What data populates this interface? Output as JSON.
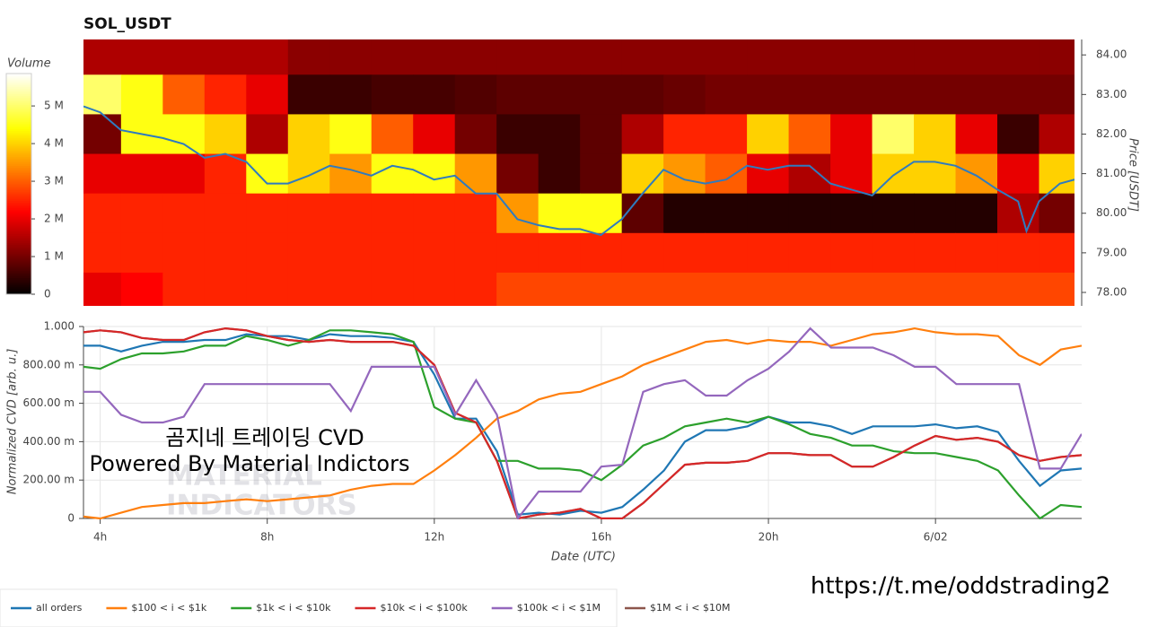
{
  "chart_data": [
    {
      "type": "heatmap",
      "title": "SOL_USDT",
      "ylabel": "Price [USDT]",
      "xlim": [
        3.6,
        27.35
      ],
      "ylim": [
        77.66,
        84.39
      ],
      "yticks": [
        {
          "value": 78,
          "label": "78.00"
        },
        {
          "value": 79,
          "label": "79.00"
        },
        {
          "value": 80,
          "label": "80.00"
        },
        {
          "value": 81,
          "label": "81.00"
        },
        {
          "value": 82,
          "label": "82.00"
        },
        {
          "value": 83,
          "label": "83.00"
        },
        {
          "value": 84,
          "label": "84.00"
        }
      ],
      "colormap": "hot",
      "colorbar": {
        "label": "Volume",
        "lim": [
          0,
          5.86
        ],
        "ticks": [
          0,
          {
            "value": 1,
            "label": "1 M"
          },
          {
            "value": 2,
            "label": "2 M"
          },
          {
            "value": 3,
            "label": "3 M"
          },
          {
            "value": 4,
            "label": "4 M"
          },
          {
            "value": 5,
            "label": "5 M"
          }
        ]
      },
      "x_edges": [
        3.5,
        4.5,
        5.5,
        6.5,
        7.5,
        8.5,
        9.5,
        10.5,
        11.5,
        12.5,
        13.5,
        14.5,
        15.5,
        16.5,
        17.5,
        18.5,
        19.5,
        20.5,
        21.5,
        22.5,
        23.5,
        24.5,
        25.5,
        26.5,
        27.5
      ],
      "y_edges": [
        84.5,
        83.5,
        82.5,
        81.5,
        80.5,
        79.5,
        78.5,
        77.5
      ],
      "z": [
        [
          1.5,
          1.5,
          1.5,
          1.5,
          1.5,
          1.2,
          1.2,
          1.2,
          1.2,
          1.2,
          1.2,
          1.2,
          1.2,
          1.2,
          1.2,
          1.2,
          1.2,
          1.2,
          1.2,
          1.2,
          1.2,
          1.2,
          1.2,
          1.2
        ],
        [
          5,
          4.5,
          3,
          2.5,
          2,
          0.5,
          0.5,
          0.6,
          0.6,
          0.7,
          0.8,
          0.8,
          0.8,
          0.8,
          0.9,
          1,
          1,
          1,
          1,
          1,
          1,
          1,
          1,
          1
        ],
        [
          1,
          4.5,
          4.5,
          4,
          1.5,
          4,
          4.5,
          3,
          2,
          1,
          0.5,
          0.5,
          0.8,
          1.5,
          2.5,
          2.5,
          4,
          3,
          2,
          5,
          4,
          2,
          0.5,
          1.5
        ],
        [
          2,
          2,
          2,
          2.5,
          4.5,
          4,
          3.5,
          4.5,
          4.5,
          3.5,
          1,
          0.5,
          0.8,
          4,
          3.5,
          3,
          2,
          1.5,
          2,
          4,
          4,
          3.5,
          2,
          4
        ],
        [
          2.5,
          2.5,
          2.5,
          2.5,
          2.5,
          2.5,
          2.5,
          2.5,
          2.5,
          2.5,
          3.5,
          4.5,
          4.5,
          0.8,
          0.3,
          0.3,
          0.3,
          0.3,
          0.3,
          0.3,
          0.3,
          0.3,
          1.5,
          1
        ],
        [
          2.5,
          2.5,
          2.5,
          2.5,
          2.5,
          2.5,
          2.5,
          2.5,
          2.5,
          2.5,
          2.5,
          2.5,
          2.5,
          2.5,
          2.5,
          2.5,
          2.5,
          2.5,
          2.5,
          2.5,
          2.5,
          2.5,
          2.5,
          2.5
        ],
        [
          2,
          2.2,
          2.5,
          2.5,
          2.5,
          2.5,
          2.5,
          2.5,
          2.5,
          2.5,
          2.8,
          2.8,
          2.8,
          2.8,
          2.8,
          2.8,
          2.8,
          2.8,
          2.8,
          2.8,
          2.8,
          2.8,
          2.8,
          2.8
        ]
      ],
      "line": {
        "color": "#2f7bbf",
        "x": [
          3.6,
          4,
          4.5,
          5,
          5.5,
          6,
          6.5,
          7,
          7.5,
          8,
          8.5,
          9,
          9.5,
          10,
          10.5,
          11,
          11.5,
          12,
          12.5,
          13,
          13.5,
          14,
          14.5,
          15,
          15.5,
          16,
          16.5,
          17,
          17.5,
          18,
          18.5,
          19,
          19.5,
          20,
          20.5,
          21,
          21.5,
          22,
          22.5,
          23,
          23.5,
          24,
          24.5,
          25,
          25.5,
          26,
          26.2,
          26.5,
          27,
          27.35
        ],
        "values": [
          82.7,
          82.55,
          82.1,
          82.0,
          81.9,
          81.75,
          81.4,
          81.5,
          81.3,
          80.75,
          80.75,
          80.95,
          81.2,
          81.1,
          80.95,
          81.2,
          81.1,
          80.85,
          80.95,
          80.5,
          80.5,
          79.85,
          79.7,
          79.6,
          79.6,
          79.45,
          79.85,
          80.5,
          81.1,
          80.85,
          80.75,
          80.85,
          81.2,
          81.1,
          81.2,
          81.2,
          80.75,
          80.6,
          80.45,
          80.95,
          81.3,
          81.3,
          81.2,
          80.95,
          80.6,
          80.3,
          79.55,
          80.3,
          80.75,
          80.85
        ]
      }
    },
    {
      "type": "line",
      "xlabel": "Date (UTC)",
      "ylabel": "Normalized CVD [arb. u.]",
      "xlim": [
        3.6,
        27.5
      ],
      "ylim": [
        0,
        1
      ],
      "xticks": [
        {
          "value": 4,
          "label": "4h"
        },
        {
          "value": 8,
          "label": "8h"
        },
        {
          "value": 12,
          "label": "12h"
        },
        {
          "value": 16,
          "label": "16h"
        },
        {
          "value": 20,
          "label": "20h"
        },
        {
          "value": 24,
          "label": "6/02"
        }
      ],
      "yticks": [
        0,
        {
          "value": 0.2,
          "label": "200.00 m"
        },
        {
          "value": 0.4,
          "label": "400.00 m"
        },
        {
          "value": 0.6,
          "label": "600.00 m"
        },
        {
          "value": 0.8,
          "label": "800.00 m"
        },
        {
          "value": 1,
          "label": "1.000"
        }
      ],
      "grid": true,
      "x": [
        3.6,
        4,
        4.5,
        5,
        5.5,
        6,
        6.5,
        7,
        7.5,
        8,
        8.5,
        9,
        9.5,
        10,
        10.5,
        11,
        11.5,
        12,
        12.5,
        13,
        13.5,
        14,
        14.5,
        15,
        15.5,
        16,
        16.5,
        17,
        17.5,
        18,
        18.5,
        19,
        19.5,
        20,
        20.5,
        21,
        21.5,
        22,
        22.5,
        23,
        23.5,
        24,
        24.5,
        25,
        25.5,
        26,
        26.5,
        27,
        27.5
      ],
      "series": [
        {
          "name": "all orders",
          "color": "#1f77b4",
          "values": [
            0.9,
            0.9,
            0.87,
            0.9,
            0.92,
            0.92,
            0.93,
            0.93,
            0.96,
            0.95,
            0.95,
            0.93,
            0.96,
            0.95,
            0.95,
            0.94,
            0.92,
            0.75,
            0.52,
            0.52,
            0.35,
            0.02,
            0.03,
            0.02,
            0.04,
            0.03,
            0.06,
            0.15,
            0.25,
            0.4,
            0.46,
            0.46,
            0.48,
            0.53,
            0.5,
            0.5,
            0.48,
            0.44,
            0.48,
            0.48,
            0.48,
            0.49,
            0.47,
            0.48,
            0.45,
            0.3,
            0.17,
            0.25,
            0.26
          ]
        },
        {
          "name": "$100 < i < $1k",
          "color": "#ff7f0e",
          "values": [
            0.01,
            0.0,
            0.03,
            0.06,
            0.07,
            0.08,
            0.08,
            0.09,
            0.1,
            0.09,
            0.1,
            0.11,
            0.12,
            0.15,
            0.17,
            0.18,
            0.18,
            0.25,
            0.33,
            0.42,
            0.52,
            0.56,
            0.62,
            0.65,
            0.66,
            0.7,
            0.74,
            0.8,
            0.84,
            0.88,
            0.92,
            0.93,
            0.91,
            0.93,
            0.92,
            0.92,
            0.9,
            0.93,
            0.96,
            0.97,
            0.99,
            0.97,
            0.96,
            0.96,
            0.95,
            0.85,
            0.8,
            0.88,
            0.9
          ]
        },
        {
          "name": "$1k < i < $10k",
          "color": "#2ca02c",
          "values": [
            0.79,
            0.78,
            0.83,
            0.86,
            0.86,
            0.87,
            0.9,
            0.9,
            0.95,
            0.93,
            0.9,
            0.93,
            0.98,
            0.98,
            0.97,
            0.96,
            0.92,
            0.58,
            0.52,
            0.5,
            0.3,
            0.3,
            0.26,
            0.26,
            0.25,
            0.2,
            0.28,
            0.38,
            0.42,
            0.48,
            0.5,
            0.52,
            0.5,
            0.53,
            0.49,
            0.44,
            0.42,
            0.38,
            0.38,
            0.35,
            0.34,
            0.34,
            0.32,
            0.3,
            0.25,
            0.12,
            0.0,
            0.07,
            0.06
          ]
        },
        {
          "name": "$10k < i < $100k",
          "color": "#d62728",
          "values": [
            0.97,
            0.98,
            0.97,
            0.94,
            0.93,
            0.93,
            0.97,
            0.99,
            0.98,
            0.95,
            0.93,
            0.92,
            0.93,
            0.92,
            0.92,
            0.92,
            0.9,
            0.8,
            0.55,
            0.5,
            0.3,
            0.0,
            0.02,
            0.03,
            0.05,
            0.0,
            0.0,
            0.08,
            0.18,
            0.28,
            0.29,
            0.29,
            0.3,
            0.34,
            0.34,
            0.33,
            0.33,
            0.27,
            0.27,
            0.32,
            0.38,
            0.43,
            0.41,
            0.42,
            0.4,
            0.33,
            0.3,
            0.32,
            0.33
          ]
        },
        {
          "name": "$100k < i < $1M",
          "color": "#9467bd",
          "values": [
            0.66,
            0.66,
            0.54,
            0.5,
            0.5,
            0.53,
            0.7,
            0.7,
            0.7,
            0.7,
            0.7,
            0.7,
            0.7,
            0.56,
            0.79,
            0.79,
            0.79,
            0.79,
            0.54,
            0.72,
            0.54,
            0.0,
            0.14,
            0.14,
            0.14,
            0.27,
            0.28,
            0.66,
            0.7,
            0.72,
            0.64,
            0.64,
            0.72,
            0.78,
            0.87,
            0.99,
            0.89,
            0.89,
            0.89,
            0.85,
            0.79,
            0.79,
            0.7,
            0.7,
            0.7,
            0.7,
            0.26,
            0.26,
            0.44
          ]
        },
        {
          "name": "$1M < i < $10M",
          "color": "#8c564b",
          "values": [
            0.97,
            0.98,
            0.97,
            0.94,
            0.93,
            0.93,
            0.97,
            0.99,
            0.98,
            0.95,
            0.93,
            0.92,
            0.93,
            0.92,
            0.92,
            0.92,
            0.9,
            0.8,
            0.55,
            0.5,
            0.3,
            0.0,
            0.02,
            0.03,
            0.05,
            0.0,
            0.0,
            0.08,
            0.18,
            0.28,
            0.29,
            0.29,
            0.3,
            0.34,
            0.34,
            0.33,
            0.33,
            0.27,
            0.27,
            0.32,
            0.38,
            0.43,
            0.41,
            0.42,
            0.4,
            0.33,
            0.3,
            0.32,
            0.33
          ]
        }
      ],
      "watermark": [
        "MATERIAL",
        "INDICATORS"
      ],
      "annotations": [
        "곰지네 트레이딩 CVD",
        "Powered By Material Indictors"
      ]
    }
  ],
  "footer_link": "https://t.me/oddstrading2"
}
